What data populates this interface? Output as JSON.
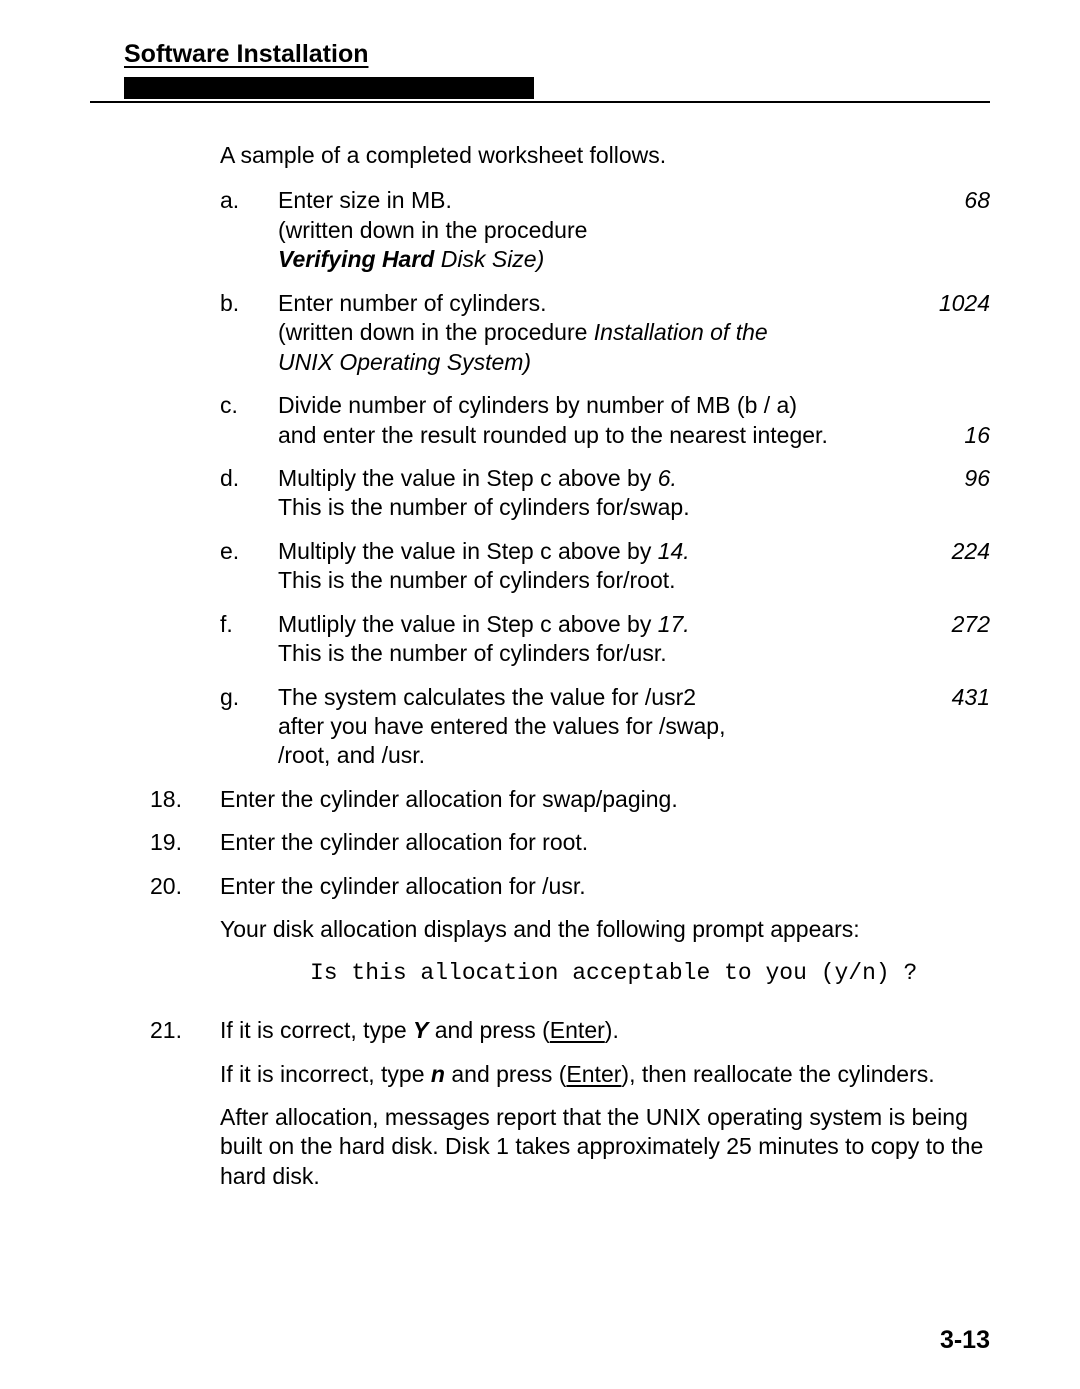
{
  "header": {
    "section_title": "Software Installation"
  },
  "intro": "A sample of a completed worksheet follows.",
  "items": {
    "a": {
      "letter": "a.",
      "line1": "Enter size in MB.",
      "line2": "(written down in the procedure",
      "line3_bold": "Verifying Hard",
      "line3_ital": " Disk Size)",
      "value": "68"
    },
    "b": {
      "letter": "b.",
      "line1": "Enter number of cylinders.",
      "line2a": "(written down in the procedure ",
      "line2b_ital": "Installation of the",
      "line3_ital": "UNIX Operating System)",
      "value": "1024"
    },
    "c": {
      "letter": "c.",
      "line1": "Divide number of cylinders by number of MB (b / a)",
      "line2": "and enter the result rounded up to the nearest integer.",
      "value": "16"
    },
    "d": {
      "letter": "d.",
      "line1a": "Multiply the value in Step c above by ",
      "line1b_ital": "6.",
      "line2": "This is the number of cylinders for/swap.",
      "value": "96"
    },
    "e": {
      "letter": "e.",
      "line1a": "Multiply the value in Step c above by ",
      "line1b_ital": "14.",
      "line2": "This is the number of cylinders for/root.",
      "value": "224"
    },
    "f": {
      "letter": "f.",
      "line1a": "Mutliply the value in Step c above by ",
      "line1b_ital": "17.",
      "line2": "This is the number of cylinders for/usr.",
      "value": "272"
    },
    "g": {
      "letter": "g.",
      "line1": "The system calculates the value for /usr2",
      "line2": "after you have entered the values for /swap,",
      "line3": "/root, and /usr.",
      "value": "431"
    }
  },
  "steps": {
    "s18": {
      "num": "18.",
      "text": "Enter the cylinder allocation for swap/paging."
    },
    "s19": {
      "num": "19.",
      "text": "Enter the cylinder allocation for root."
    },
    "s20": {
      "num": "20.",
      "line1": "Enter the cylinder allocation for /usr.",
      "line2": "Your disk allocation displays and the following prompt appears:",
      "mono_a": "Is",
      "mono_b": " this allocation acceptable to you (y/n) ?"
    },
    "s21": {
      "num": "21.",
      "line1a": "If it is correct, type ",
      "line1b_bi": "Y",
      "line1c": " and press (",
      "line1d_u": "Enter",
      "line1e": ").",
      "line2a": "If it is incorrect, type ",
      "line2b_bi": "n",
      "line2c": "  and  press  (",
      "line2d_u": "Enter",
      "line2e": "), then reallocate the cylinders.",
      "line3": "After allocation, messages report that the UNIX operating system is being built on the hard disk. Disk 1 takes approximately 25 minutes to copy to the hard disk."
    }
  },
  "page_number": "3-13"
}
